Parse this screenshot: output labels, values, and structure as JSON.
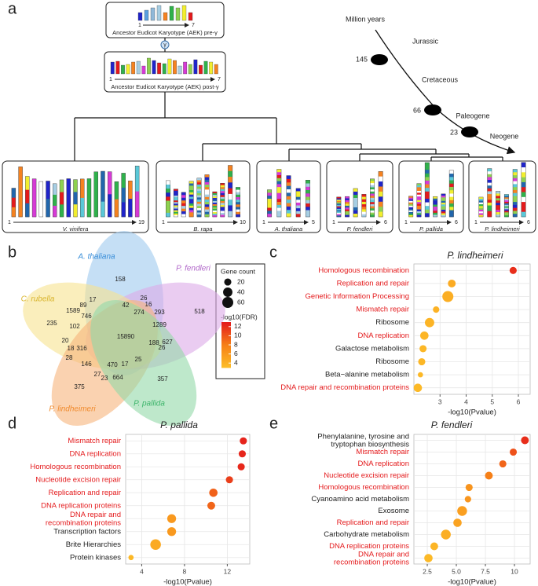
{
  "panels": [
    "a",
    "b",
    "c",
    "d",
    "e"
  ],
  "karyotype": {
    "pre": {
      "caption": "Ancestor Eudicot Karyotype (AEK) pre-γ",
      "first": "1",
      "last": "7"
    },
    "post": {
      "caption": "Ancestor Eudicot Karyotype (AEK) post-γ",
      "first": "1",
      "last": "7"
    },
    "event": "γ",
    "species": [
      {
        "name": "V. vinifera",
        "first": "1",
        "last": "19"
      },
      {
        "name": "B. rapa",
        "first": "1",
        "last": "10"
      },
      {
        "name": "A. thaliana",
        "first": "1",
        "last": "5"
      },
      {
        "name": "P. fendleri",
        "first": "1",
        "last": "6"
      },
      {
        "name": "P. pallida",
        "first": "1",
        "last": "6"
      },
      {
        "name": "P. lindheimeri",
        "first": "1",
        "last": "6"
      }
    ],
    "timeline": {
      "title": "Million years",
      "eras": [
        "Jurassic",
        "Cretaceous",
        "Paleogene",
        "Neogene"
      ],
      "nodes": [
        "145",
        "66",
        "23"
      ]
    }
  },
  "venn": {
    "labels": [
      {
        "text": "A. thaliana",
        "color": "#3b8fd9"
      },
      {
        "text": "P. fendleri",
        "color": "#b066c9"
      },
      {
        "text": "C. rubella",
        "color": "#d9b52e"
      },
      {
        "text": "P. lindheimeri",
        "color": "#f08a2c"
      },
      {
        "text": "P. pallida",
        "color": "#3cb46a"
      }
    ],
    "fills": [
      "#9ec9ee",
      "#dcaae8",
      "#f6e290",
      "#f7b47c",
      "#93d8a8"
    ],
    "counts": [
      158,
      26,
      17,
      16,
      42,
      274,
      293,
      518,
      89,
      1589,
      746,
      1289,
      235,
      102,
      15890,
      627,
      20,
      188,
      26,
      18,
      316,
      28,
      146,
      470,
      17,
      25,
      27,
      23,
      664,
      375,
      357
    ]
  },
  "legend": {
    "size_title": "Gene count",
    "sizes": [
      20,
      40,
      60
    ],
    "color_title": "-log10(FDR)",
    "color_ticks": [
      4,
      6,
      8,
      10,
      12
    ],
    "color_lim": [
      3,
      13
    ]
  },
  "chart_data": [
    {
      "type": "dot",
      "title": "P. lindheimeri",
      "xlabel": "-log10(Pvalue)",
      "categories": [
        "Homologous recombination",
        "Replication and repair",
        "Genetic Information Processing",
        "Mismatch repair",
        "Ribosome",
        "DNA replication",
        "Galactose metabolism",
        "Ribosome",
        "Beta−alanine metabolism",
        "DNA repair and recombination proteins"
      ],
      "label_colors": [
        "#e41a1c",
        "#e41a1c",
        "#e41a1c",
        "#e41a1c",
        "#222222",
        "#e41a1c",
        "#222222",
        "#222222",
        "#222222",
        "#e41a1c"
      ],
      "values": [
        5.8,
        3.45,
        3.3,
        2.85,
        2.6,
        2.4,
        2.35,
        2.3,
        2.25,
        2.15
      ],
      "sizes": [
        20,
        25,
        60,
        15,
        40,
        30,
        20,
        20,
        8,
        30
      ],
      "fdr": [
        12,
        4.5,
        4.3,
        4,
        3.8,
        3.7,
        3.6,
        3.6,
        3.5,
        3.4
      ],
      "xlim": [
        2.0,
        6.45
      ],
      "xticks": [
        3,
        4,
        5,
        6
      ],
      "grid": true
    },
    {
      "type": "dot",
      "title": "P. pallida",
      "xlabel": "-log10(Pvalue)",
      "categories": [
        "Mismatch repair",
        "DNA replication",
        "Homologous recombination",
        "Nucleotide excision repair",
        "Replication and repair",
        "DNA replication proteins",
        "DNA repair and\nrecombination proteins",
        "Transcription factors",
        "Brite Hierarchies",
        "Protein kinases"
      ],
      "label_colors": [
        "#e41a1c",
        "#e41a1c",
        "#e41a1c",
        "#e41a1c",
        "#e41a1c",
        "#e41a1c",
        "#e41a1c",
        "#222222",
        "#222222",
        "#222222"
      ],
      "values": [
        13.5,
        13.4,
        13.3,
        12.2,
        10.7,
        10.5,
        6.8,
        6.8,
        5.3,
        3.0
      ],
      "sizes": [
        20,
        20,
        20,
        20,
        30,
        25,
        35,
        35,
        55,
        8
      ],
      "fdr": [
        12.5,
        12.4,
        12.3,
        11.2,
        9.5,
        9.3,
        6,
        6,
        4.6,
        3.5
      ],
      "xlim": [
        2.5,
        14.1
      ],
      "xticks": [
        4,
        8,
        12
      ],
      "grid": true
    },
    {
      "type": "dot",
      "title": "P. fendleri",
      "xlabel": "-log10(Pvalue)",
      "categories": [
        "Phenylalanine, tyrosine and\ntryptophan biosynthesis",
        "Mismatch repair",
        "DNA replication",
        "Nucleotide excision repair",
        "Homologous recombination",
        "Cyanoamino acid metabolism",
        "Exosome",
        "Replication and repair",
        "Carbohydrate metabolism",
        "DNA replication proteins",
        "DNA repair and\nrecombination proteins"
      ],
      "label_colors": [
        "#222222",
        "#e41a1c",
        "#e41a1c",
        "#e41a1c",
        "#e41a1c",
        "#222222",
        "#222222",
        "#e41a1c",
        "#222222",
        "#e41a1c",
        "#e41a1c"
      ],
      "values": [
        10.9,
        9.9,
        9.0,
        7.8,
        6.1,
        6.0,
        5.5,
        5.1,
        4.1,
        3.1,
        2.6
      ],
      "sizes": [
        25,
        20,
        20,
        25,
        20,
        15,
        45,
        30,
        45,
        25,
        30
      ],
      "fdr": [
        12,
        10.3,
        9.3,
        8,
        6.4,
        6.2,
        5.5,
        5.2,
        4.3,
        3.7,
        3.4
      ],
      "xlim": [
        1.35,
        11.35
      ],
      "xticks": [
        {
          "value": 2.5,
          "label": "2.5"
        },
        {
          "value": 5,
          "label": "5.0"
        },
        {
          "value": 7.5,
          "label": "7.5"
        },
        10
      ],
      "grid": true
    }
  ]
}
